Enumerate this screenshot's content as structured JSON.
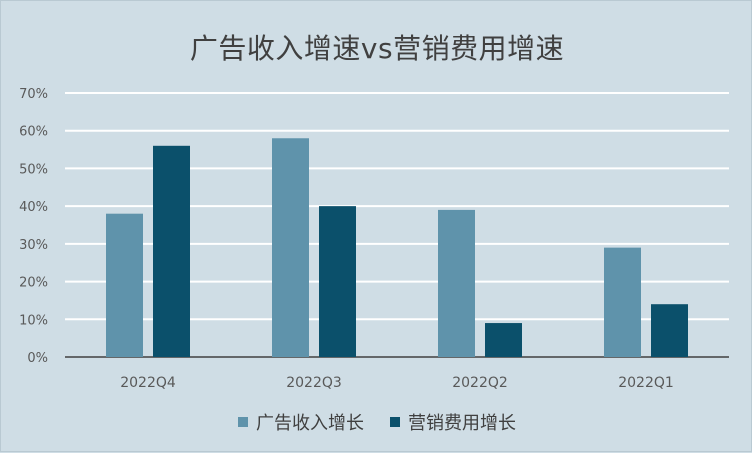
{
  "chart_data": {
    "type": "bar",
    "title": "广告收入增速vs营销费用增速",
    "categories": [
      "2022Q4",
      "2022Q3",
      "2022Q2",
      "2022Q1"
    ],
    "series": [
      {
        "name": "广告收入增长",
        "values": [
          38,
          58,
          39,
          29
        ],
        "color": "#5f93ab"
      },
      {
        "name": "营销费用增长",
        "values": [
          56,
          40,
          9,
          14
        ],
        "color": "#0b506b"
      }
    ],
    "ylim": [
      0,
      70
    ],
    "y_ticks": [
      "0%",
      "10%",
      "20%",
      "30%",
      "40%",
      "50%",
      "60%",
      "70%"
    ],
    "grid": true,
    "legend_position": "bottom"
  }
}
